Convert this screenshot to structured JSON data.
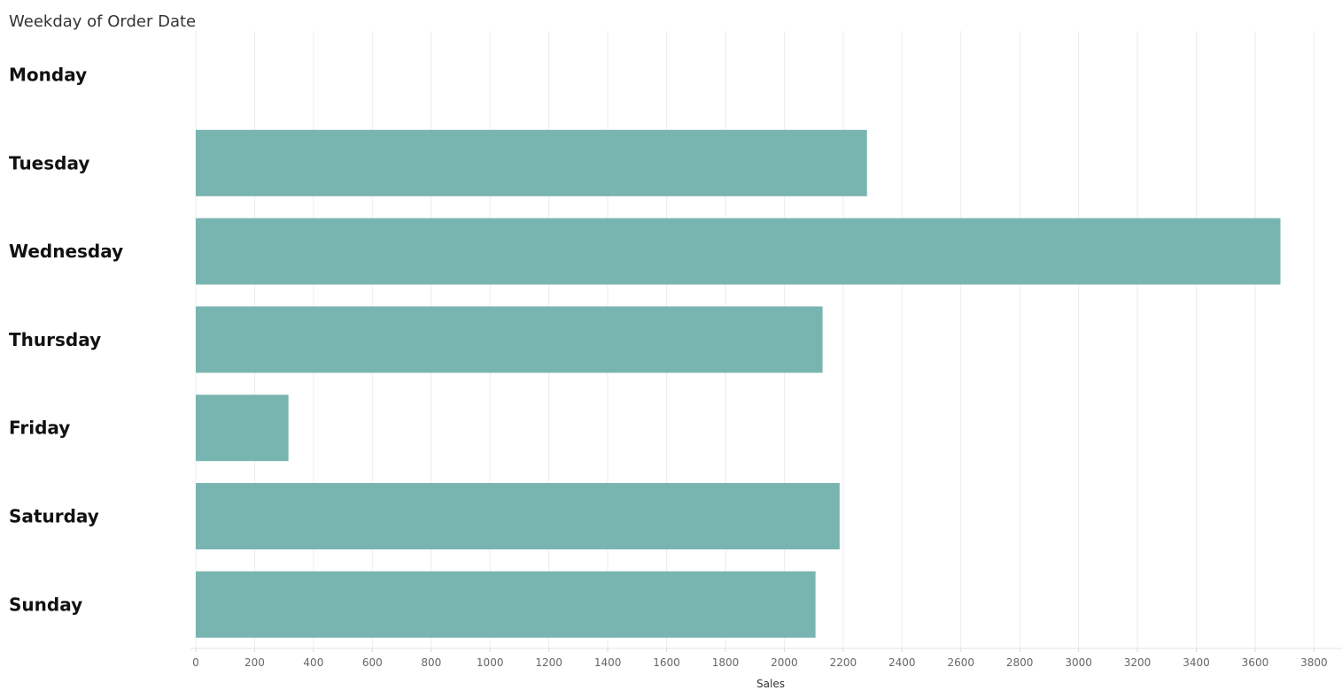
{
  "chart_data": {
    "type": "bar",
    "orientation": "horizontal",
    "row_header": "Weekday of Order Date",
    "categories": [
      "Monday",
      "Tuesday",
      "Wednesday",
      "Thursday",
      "Friday",
      "Saturday",
      "Sunday"
    ],
    "values": [
      0,
      2281,
      3686,
      2130,
      315,
      2188,
      2106
    ],
    "xlabel": "Sales",
    "ylabel": "",
    "xlim": [
      0,
      3850
    ],
    "x_ticks": [
      0,
      200,
      400,
      600,
      800,
      1000,
      1200,
      1400,
      1600,
      1800,
      2000,
      2200,
      2400,
      2600,
      2800,
      3000,
      3200,
      3400,
      3600,
      3800
    ],
    "grid": true,
    "bar_color": "#79b5b0",
    "grid_color": "#ececec"
  }
}
